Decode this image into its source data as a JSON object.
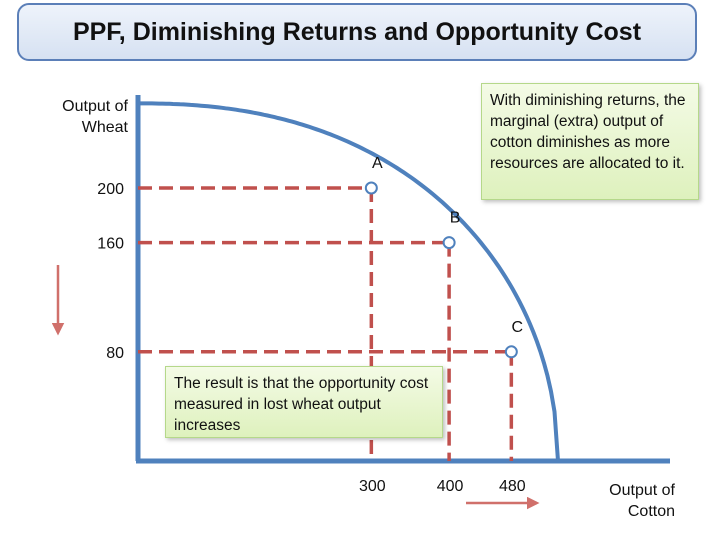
{
  "chart_data": {
    "type": "line",
    "title": "PPF, Diminishing Returns and Opportunity Cost",
    "xlabel": [
      "Output of",
      "Cotton"
    ],
    "ylabel": [
      "Output of",
      "Wheat"
    ],
    "xlim": [
      0,
      540
    ],
    "ylim": [
      0,
      260
    ],
    "grid": false,
    "series": [
      {
        "name": "PPF",
        "x": [
          0,
          100,
          200,
          300,
          400,
          480,
          540
        ],
        "y": [
          262,
          253,
          232,
          200,
          160,
          80,
          0
        ]
      }
    ],
    "points": [
      {
        "label": "A",
        "x": 300,
        "y": 200
      },
      {
        "label": "B",
        "x": 400,
        "y": 160
      },
      {
        "label": "C",
        "x": 480,
        "y": 80
      }
    ],
    "x_ticks": [
      300,
      400,
      480
    ],
    "y_ticks": [
      200,
      160,
      80
    ],
    "annotations": [
      "With diminishing returns, the marginal (extra) output of cotton diminishes as more resources are allocated to it.",
      "The result is that the opportunity cost measured in lost wheat output increases"
    ],
    "colors": {
      "axis": "#4f81bd",
      "curve": "#4f81bd",
      "guide": "#c0504d",
      "arrow": "#d0706b",
      "marker_fill": "#ffffff",
      "marker_stroke": "#4f81bd"
    }
  }
}
